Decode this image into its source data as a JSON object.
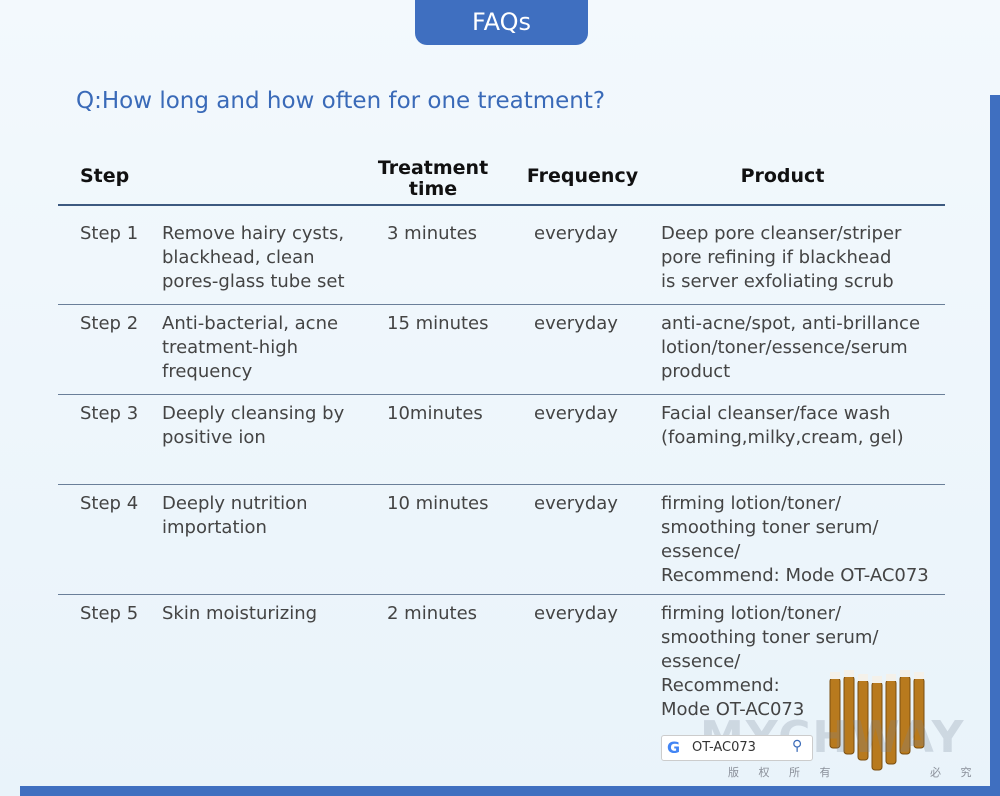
{
  "header": {
    "tab": "FAQs",
    "question": "Q:How long and how often for one treatment?"
  },
  "table": {
    "columns": [
      "Step",
      "Treatment time",
      "Frequency",
      "Product"
    ],
    "rows": [
      {
        "step": "Step 1",
        "description": [
          "Remove hairy cysts,",
          "blackhead, clean",
          "pores-glass tube set"
        ],
        "time": "3 minutes",
        "frequency": "everyday",
        "product": [
          "Deep pore cleanser/striper",
          "pore refining if blackhead",
          "is server exfoliating scrub"
        ]
      },
      {
        "step": "Step 2",
        "description": [
          "Anti-bacterial, acne",
          "treatment-high",
          "frequency"
        ],
        "time": "15 minutes",
        "frequency": "everyday",
        "product": [
          "anti-acne/spot, anti-brillance",
          "lotion/toner/essence/serum",
          "product"
        ]
      },
      {
        "step": "Step 3",
        "description": [
          "Deeply cleansing by",
          "positive ion"
        ],
        "time": "10minutes",
        "frequency": "everyday",
        "product": [
          "Facial cleanser/face wash",
          "(foaming,milky,cream, gel)"
        ]
      },
      {
        "step": "Step 4",
        "description": [
          "Deeply nutrition",
          "importation"
        ],
        "time": "10 minutes",
        "frequency": "everyday",
        "product": [
          "firming lotion/toner/",
          "smoothing toner serum/",
          "essence/",
          "Recommend: Mode OT-AC073"
        ]
      },
      {
        "step": "Step 5",
        "description": [
          "Skin moisturizing"
        ],
        "time": "2 minutes",
        "frequency": "everyday",
        "product": [
          "firming lotion/toner/",
          "smoothing toner serum/",
          "essence/",
          "Recommend:",
          "Mode OT-AC073"
        ]
      }
    ]
  },
  "watermark": {
    "brand": "MYCHWAY",
    "notice_left": "版 权 所 有",
    "notice_right": "必 究"
  },
  "search": {
    "query": "OT-AC073"
  }
}
